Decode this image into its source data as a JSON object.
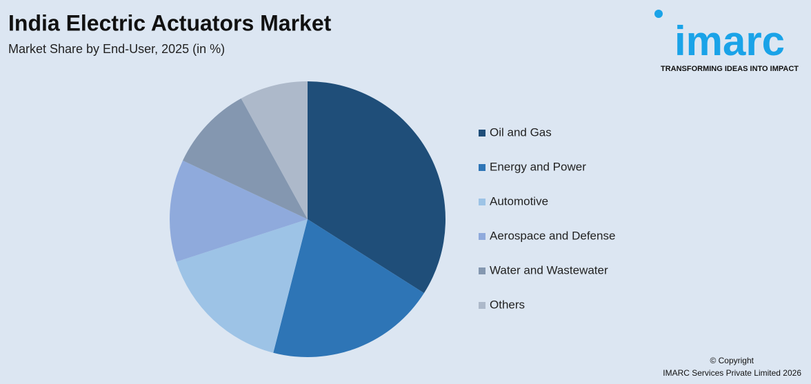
{
  "chart_data": {
    "type": "pie",
    "title": "India Electric Actuators Market",
    "subtitle": "Market Share by End-User, 2025 (in %)",
    "categories": [
      "Oil and Gas",
      "Energy and Power",
      "Automotive",
      "Aerospace and Defense",
      "Water and Wastewater",
      "Others"
    ],
    "values": [
      34,
      20,
      16,
      12,
      10,
      8
    ],
    "colors": [
      "#1f4e79",
      "#2e75b6",
      "#9dc3e6",
      "#8faadc",
      "#8497b0",
      "#adb9ca"
    ],
    "legend": "right"
  },
  "logo": {
    "text": "imarc",
    "tagline": "TRANSFORMING IDEAS INTO IMPACT"
  },
  "footer": {
    "copyright": "© Copyright",
    "company": "IMARC Services Private Limited 2026"
  }
}
